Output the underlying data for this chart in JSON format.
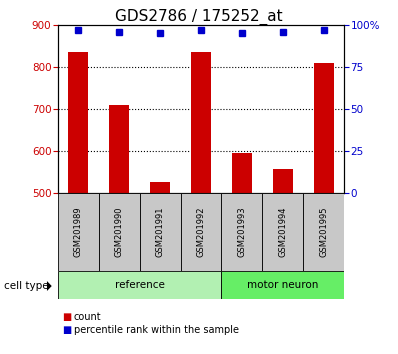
{
  "title": "GDS2786 / 175252_at",
  "samples": [
    "GSM201989",
    "GSM201990",
    "GSM201991",
    "GSM201992",
    "GSM201993",
    "GSM201994",
    "GSM201995"
  ],
  "counts": [
    835,
    710,
    525,
    835,
    595,
    558,
    808
  ],
  "percentile_ranks": [
    97,
    96,
    95,
    97,
    95,
    96,
    97
  ],
  "groups": [
    {
      "name": "reference",
      "start": 0,
      "end": 4,
      "color": "#b2f0b2"
    },
    {
      "name": "motor neuron",
      "start": 4,
      "end": 7,
      "color": "#66ee66"
    }
  ],
  "ylim_left": [
    500,
    900
  ],
  "ylim_right": [
    0,
    100
  ],
  "yticks_left": [
    500,
    600,
    700,
    800,
    900
  ],
  "yticks_right": [
    0,
    25,
    50,
    75,
    100
  ],
  "bar_color": "#cc0000",
  "dot_color": "#0000cc",
  "title_fontsize": 11,
  "axis_color_left": "#cc0000",
  "axis_color_right": "#0000cc",
  "sample_bg_color": "#c8c8c8",
  "grid_dotted_vals": [
    600,
    700,
    800
  ]
}
